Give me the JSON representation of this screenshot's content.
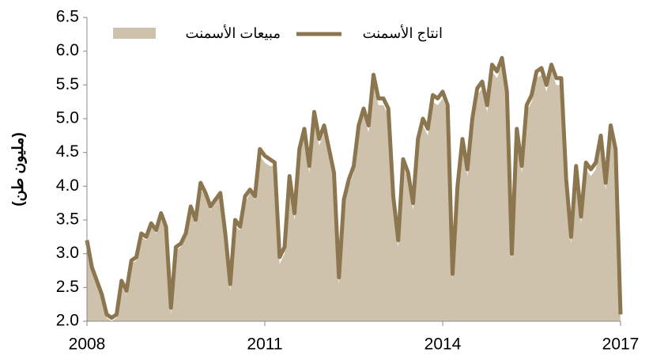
{
  "chart_data": {
    "type": "line",
    "y_label": "(مليون طن)",
    "categories": [
      "2008",
      null,
      null,
      null,
      null,
      null,
      null,
      null,
      null,
      null,
      null,
      null,
      null,
      null,
      null,
      null,
      null,
      null,
      null,
      null,
      null,
      null,
      null,
      null,
      null,
      null,
      null,
      null,
      null,
      null,
      null,
      null,
      null,
      null,
      null,
      null,
      "2011",
      null,
      null,
      null,
      null,
      null,
      null,
      null,
      null,
      null,
      null,
      null,
      null,
      null,
      null,
      null,
      null,
      null,
      null,
      null,
      null,
      null,
      null,
      null,
      null,
      null,
      null,
      null,
      null,
      null,
      null,
      null,
      null,
      null,
      null,
      null,
      "2014",
      null,
      null,
      null,
      null,
      null,
      null,
      null,
      null,
      null,
      null,
      null,
      null,
      null,
      null,
      null,
      null,
      null,
      null,
      null,
      null,
      null,
      null,
      null,
      null,
      null,
      null,
      null,
      null,
      null,
      null,
      null,
      null,
      null,
      null,
      null,
      "2017"
    ],
    "series": [
      {
        "name": "مبيعات الأسمنت",
        "kind": "area",
        "color": "#cfc2ad",
        "values": [
          3.1,
          2.75,
          2.55,
          2.35,
          2.05,
          2.0,
          2.05,
          2.5,
          2.4,
          2.85,
          2.9,
          3.25,
          3.2,
          3.4,
          3.3,
          3.5,
          3.35,
          2.1,
          3.05,
          3.1,
          3.25,
          3.6,
          3.45,
          3.95,
          3.85,
          3.65,
          3.75,
          3.85,
          3.2,
          2.45,
          3.4,
          3.35,
          3.75,
          3.9,
          3.8,
          4.45,
          4.35,
          4.3,
          4.3,
          2.85,
          3.0,
          4.05,
          3.5,
          4.45,
          4.75,
          4.2,
          5.0,
          4.6,
          4.8,
          4.5,
          4.1,
          2.55,
          3.7,
          4.0,
          4.2,
          4.8,
          5.05,
          4.8,
          5.55,
          5.2,
          5.2,
          5.05,
          3.75,
          3.1,
          4.3,
          4.1,
          3.65,
          4.6,
          4.9,
          4.75,
          5.25,
          5.2,
          5.3,
          5.1,
          2.6,
          3.9,
          4.6,
          4.15,
          4.9,
          5.35,
          5.45,
          5.1,
          5.7,
          5.6,
          5.8,
          5.3,
          2.9,
          4.75,
          4.2,
          5.1,
          5.25,
          5.6,
          5.65,
          5.4,
          5.7,
          5.5,
          5.5,
          4.0,
          3.15,
          4.2,
          3.45,
          4.25,
          4.15,
          4.25,
          4.65,
          3.95,
          4.8,
          4.45,
          2.0
        ]
      },
      {
        "name": "انتاج الأسمنت",
        "kind": "line",
        "color": "#8c7650",
        "values": [
          3.2,
          2.8,
          2.6,
          2.4,
          2.1,
          2.05,
          2.1,
          2.6,
          2.45,
          2.9,
          2.95,
          3.3,
          3.25,
          3.45,
          3.35,
          3.6,
          3.4,
          2.2,
          3.1,
          3.15,
          3.3,
          3.7,
          3.5,
          4.05,
          3.9,
          3.7,
          3.8,
          3.9,
          3.3,
          2.55,
          3.5,
          3.4,
          3.85,
          3.95,
          3.85,
          4.55,
          4.45,
          4.4,
          4.35,
          2.95,
          3.1,
          4.15,
          3.6,
          4.55,
          4.85,
          4.3,
          5.1,
          4.7,
          4.9,
          4.55,
          4.2,
          2.65,
          3.8,
          4.1,
          4.3,
          4.9,
          5.15,
          4.9,
          5.65,
          5.3,
          5.3,
          5.15,
          3.85,
          3.2,
          4.4,
          4.2,
          3.75,
          4.7,
          5.0,
          4.85,
          5.35,
          5.3,
          5.4,
          5.2,
          2.7,
          4.0,
          4.7,
          4.25,
          5.0,
          5.45,
          5.55,
          5.2,
          5.8,
          5.7,
          5.9,
          5.4,
          3.0,
          4.85,
          4.3,
          5.2,
          5.35,
          5.7,
          5.75,
          5.5,
          5.8,
          5.6,
          5.6,
          4.1,
          3.25,
          4.3,
          3.55,
          4.35,
          4.25,
          4.35,
          4.75,
          4.05,
          4.9,
          4.55,
          2.1
        ]
      }
    ],
    "ylim": [
      2,
      6.5
    ],
    "yticks": [
      {
        "value": 2,
        "label": "2.0"
      },
      2.5,
      {
        "value": 3,
        "label": "3.0"
      },
      3.5,
      {
        "value": 4,
        "label": "4.0"
      },
      4.5,
      {
        "value": 5,
        "label": "5.0"
      },
      5.5,
      {
        "value": 6,
        "label": "6.0"
      },
      6.5
    ],
    "grid": false
  }
}
